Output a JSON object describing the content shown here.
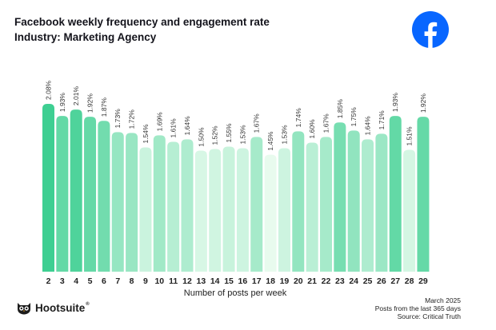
{
  "header": {
    "title": "Facebook weekly frequency and engagement rate",
    "subtitle": "Industry: Marketing Agency"
  },
  "footer": {
    "brand": "Hootsuite",
    "reg_mark": "®",
    "date": "March 2025",
    "period": "Posts from the last 365 days",
    "source": "Source: Critical Truth"
  },
  "colors": {
    "title": "#14141c",
    "bar_high": "#3ecf92",
    "bar_low": "#e8fbee",
    "logo": "#0866ff"
  },
  "icons": {
    "brand_logo": "facebook-logo-icon",
    "hootsuite_logo": "owl-icon"
  },
  "chart_data": {
    "type": "bar",
    "title": "Facebook weekly frequency and engagement rate",
    "subtitle": "Industry: Marketing Agency",
    "xlabel": "Number of posts per week",
    "ylabel": "",
    "categories": [
      "2",
      "3",
      "4",
      "5",
      "6",
      "7",
      "8",
      "9",
      "10",
      "11",
      "12",
      "13",
      "14",
      "15",
      "16",
      "17",
      "18",
      "19",
      "20",
      "21",
      "22",
      "23",
      "24",
      "25",
      "26",
      "27",
      "28",
      "29"
    ],
    "values": [
      2.08,
      1.93,
      2.01,
      1.92,
      1.87,
      1.73,
      1.72,
      1.54,
      1.69,
      1.61,
      1.64,
      1.5,
      1.52,
      1.55,
      1.53,
      1.67,
      1.45,
      1.53,
      1.74,
      1.6,
      1.67,
      1.85,
      1.75,
      1.64,
      1.71,
      1.93,
      1.51,
      1.92
    ],
    "labels": [
      "2.08%",
      "1.93%",
      "2.01%",
      "1.92%",
      "1.87%",
      "1.73%",
      "1.72%",
      "1.54%",
      "1.69%",
      "1.61%",
      "1.64%",
      "1.50%",
      "1.52%",
      "1.55%",
      "1.53%",
      "1.67%",
      "1.45%",
      "1.53%",
      "1.74%",
      "1.60%",
      "1.67%",
      "1.85%",
      "1.75%",
      "1.64%",
      "1.71%",
      "1.93%",
      "1.51%",
      "1.92%"
    ],
    "ylim": [
      0,
      2.08
    ],
    "grid": false,
    "legend": "none"
  }
}
